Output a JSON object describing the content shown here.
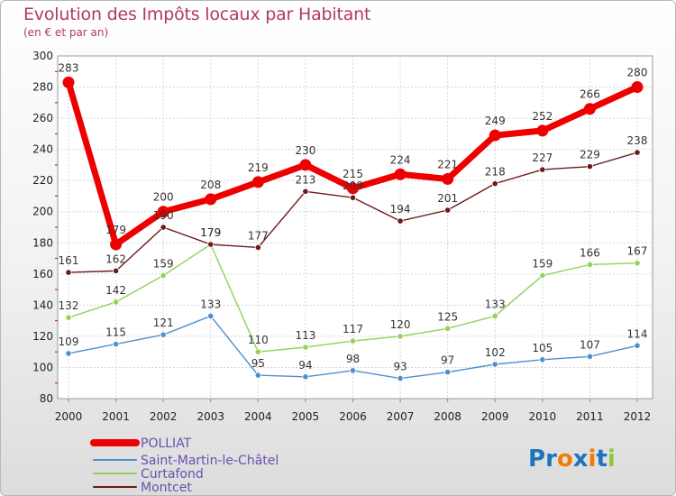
{
  "title": "Evolution des Impôts locaux par Habitant",
  "subtitle": "(en € et par an)",
  "brand": {
    "text": "Proxiti",
    "letters": [
      "P",
      "r",
      "o",
      "x",
      "i",
      "t",
      "i"
    ],
    "colors": [
      "#1e73be",
      "#1e73be",
      "#f07d00",
      "#1e73be",
      "#f07d00",
      "#1e73be",
      "#8cc63f"
    ]
  },
  "chart_data": {
    "type": "line",
    "title": "Evolution des Impôts locaux par Habitant",
    "subtitle": "(en € et par an)",
    "categories": [
      "2000",
      "2001",
      "2002",
      "2003",
      "2004",
      "2005",
      "2006",
      "2007",
      "2008",
      "2009",
      "2010",
      "2011",
      "2012"
    ],
    "ylim": [
      80,
      300
    ],
    "yticks": [
      "80",
      "100",
      "120",
      "140",
      "160",
      "180",
      "200",
      "220",
      "240",
      "260",
      "280",
      "300"
    ],
    "grid": true,
    "legend_position": "bottom-left",
    "series": [
      {
        "name": "POLLIAT",
        "color": "#ee0000",
        "values": [
          283,
          179,
          200,
          208,
          219,
          230,
          215,
          224,
          221,
          249,
          252,
          266,
          280
        ]
      },
      {
        "name": "Saint-Martin-le-Châtel",
        "color": "#4f8fcf",
        "values": [
          109,
          115,
          121,
          133,
          95,
          94,
          98,
          93,
          97,
          102,
          105,
          107,
          114
        ]
      },
      {
        "name": "Curtafond",
        "color": "#8fd35a",
        "values": [
          132,
          142,
          159,
          179,
          110,
          113,
          117,
          120,
          125,
          133,
          159,
          166,
          167
        ]
      },
      {
        "name": "Montcet",
        "color": "#6b1a1a",
        "values": [
          161,
          162,
          190,
          179,
          177,
          213,
          209,
          194,
          201,
          218,
          227,
          229,
          238
        ]
      }
    ]
  }
}
